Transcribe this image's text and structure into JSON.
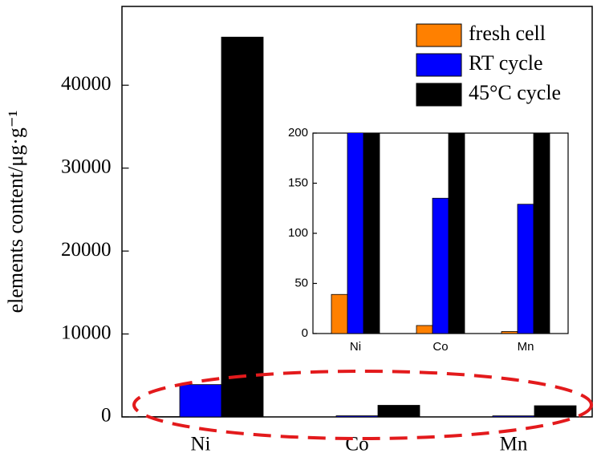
{
  "chart_data": {
    "type": "bar",
    "y_label": "elements content/μg·g⁻¹",
    "categories": [
      "Ni",
      "Co",
      "Mn"
    ],
    "series": [
      {
        "name": "fresh cell",
        "color": "#ff8000",
        "values": [
          39,
          8,
          2
        ]
      },
      {
        "name": "RT cycle",
        "color": "#0000ff",
        "values": [
          3900,
          135,
          129
        ]
      },
      {
        "name": "45°C cycle",
        "color": "#000000",
        "values": [
          45800,
          1400,
          1350
        ]
      }
    ],
    "ylim": [
      0,
      49500
    ],
    "yticks": [
      0,
      10000,
      20000,
      30000,
      40000
    ],
    "legend": "upper right",
    "inset": {
      "ylim": [
        0,
        200
      ],
      "yticks": [
        0,
        50,
        100,
        150,
        200
      ]
    }
  }
}
